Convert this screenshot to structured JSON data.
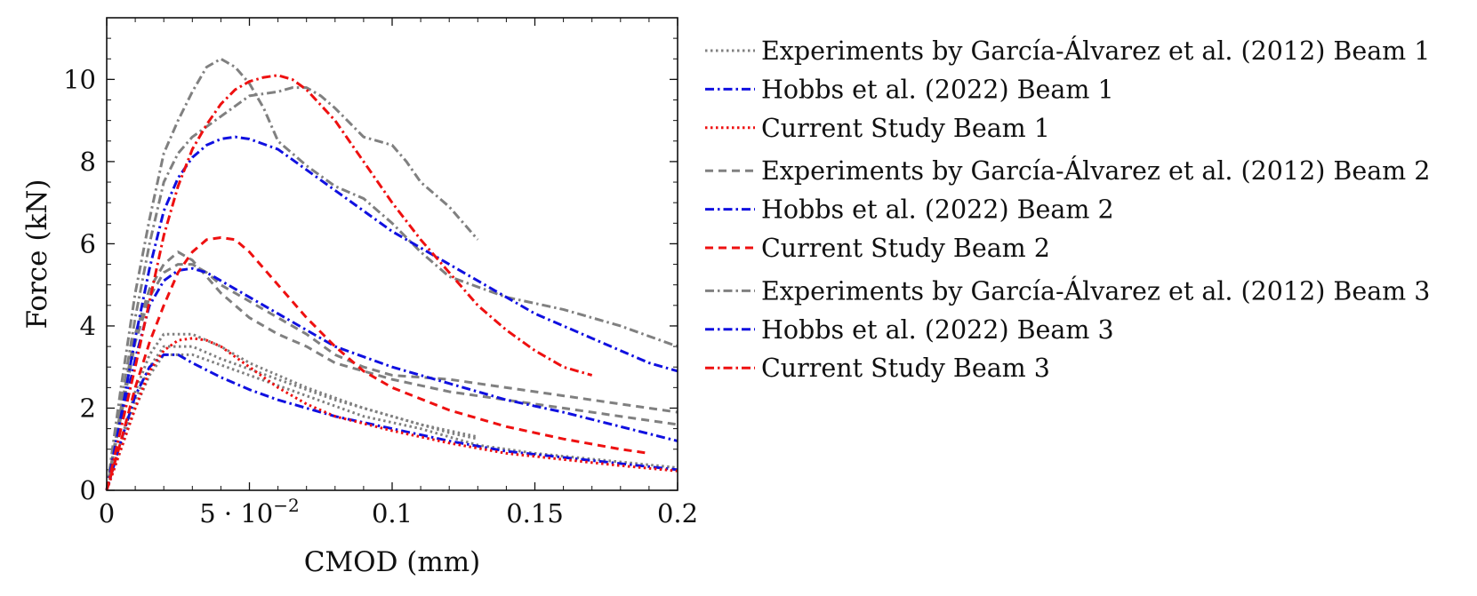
{
  "chart_data": {
    "type": "line",
    "title": "",
    "xlabel": "CMOD (mm)",
    "ylabel": "Force (kN)",
    "xlim": [
      0,
      0.2
    ],
    "ylim": [
      0,
      11.5
    ],
    "grid": false,
    "legend_position": "right-outside",
    "x_ticks": [
      {
        "value": 0,
        "label": "0"
      },
      {
        "value": 0.05,
        "label": "5 · 10",
        "sup": "−2"
      },
      {
        "value": 0.1,
        "label": "0.1"
      },
      {
        "value": 0.15,
        "label": "0.15"
      },
      {
        "value": 0.2,
        "label": "0.2"
      }
    ],
    "y_ticks": [
      {
        "value": 0,
        "label": "0"
      },
      {
        "value": 2,
        "label": "2"
      },
      {
        "value": 4,
        "label": "4"
      },
      {
        "value": 6,
        "label": "6"
      },
      {
        "value": 8,
        "label": "8"
      },
      {
        "value": 10,
        "label": "10"
      }
    ],
    "series": [
      {
        "name": "Experiments by García-Álvarez et al. (2012) Beam 1",
        "color": "#808080",
        "dash": "dotted",
        "curves": [
          [
            [
              0,
              0
            ],
            [
              0.005,
              1.2
            ],
            [
              0.01,
              2.4
            ],
            [
              0.015,
              3.3
            ],
            [
              0.02,
              3.8
            ],
            [
              0.03,
              3.8
            ],
            [
              0.04,
              3.5
            ],
            [
              0.05,
              3.1
            ],
            [
              0.07,
              2.5
            ],
            [
              0.09,
              2.0
            ],
            [
              0.11,
              1.6
            ],
            [
              0.13,
              1.3
            ]
          ],
          [
            [
              0,
              0
            ],
            [
              0.005,
              1.1
            ],
            [
              0.01,
              2.2
            ],
            [
              0.015,
              3.0
            ],
            [
              0.02,
              3.5
            ],
            [
              0.03,
              3.5
            ],
            [
              0.04,
              3.2
            ],
            [
              0.06,
              2.7
            ],
            [
              0.08,
              2.2
            ],
            [
              0.1,
              1.8
            ],
            [
              0.12,
              1.4
            ],
            [
              0.13,
              1.25
            ]
          ],
          [
            [
              0,
              0
            ],
            [
              0.005,
              1.0
            ],
            [
              0.01,
              2.0
            ],
            [
              0.015,
              2.8
            ],
            [
              0.02,
              3.3
            ],
            [
              0.03,
              3.3
            ],
            [
              0.05,
              2.8
            ],
            [
              0.07,
              2.3
            ],
            [
              0.09,
              1.8
            ],
            [
              0.11,
              1.5
            ],
            [
              0.13,
              1.1
            ],
            [
              0.15,
              0.9
            ],
            [
              0.2,
              0.55
            ]
          ]
        ]
      },
      {
        "name": "Hobbs et al. (2022) Beam 1",
        "color": "#1010e0",
        "dash": "dashdot",
        "curves": [
          [
            [
              0,
              0
            ],
            [
              0.005,
              1.2
            ],
            [
              0.01,
              2.3
            ],
            [
              0.015,
              3.0
            ],
            [
              0.02,
              3.3
            ],
            [
              0.025,
              3.3
            ],
            [
              0.03,
              3.1
            ],
            [
              0.04,
              2.75
            ],
            [
              0.05,
              2.45
            ],
            [
              0.06,
              2.2
            ],
            [
              0.08,
              1.8
            ],
            [
              0.1,
              1.5
            ],
            [
              0.12,
              1.2
            ],
            [
              0.14,
              0.95
            ],
            [
              0.16,
              0.8
            ],
            [
              0.18,
              0.65
            ],
            [
              0.2,
              0.5
            ]
          ]
        ]
      },
      {
        "name": "Current Study Beam 1",
        "color": "#ee1010",
        "dash": "dotted",
        "curves": [
          [
            [
              0,
              0
            ],
            [
              0.005,
              1.0
            ],
            [
              0.01,
              2.0
            ],
            [
              0.015,
              2.9
            ],
            [
              0.02,
              3.4
            ],
            [
              0.025,
              3.65
            ],
            [
              0.03,
              3.7
            ],
            [
              0.035,
              3.65
            ],
            [
              0.04,
              3.5
            ],
            [
              0.05,
              3.0
            ],
            [
              0.06,
              2.5
            ],
            [
              0.07,
              2.1
            ],
            [
              0.08,
              1.8
            ],
            [
              0.1,
              1.45
            ],
            [
              0.12,
              1.15
            ],
            [
              0.14,
              0.9
            ],
            [
              0.16,
              0.75
            ],
            [
              0.18,
              0.6
            ],
            [
              0.2,
              0.47
            ]
          ]
        ]
      },
      {
        "name": "Experiments by García-Álvarez et al. (2012) Beam 2",
        "color": "#808080",
        "dash": "dashed",
        "curves": [
          [
            [
              0,
              0
            ],
            [
              0.005,
              2.0
            ],
            [
              0.01,
              3.8
            ],
            [
              0.015,
              4.9
            ],
            [
              0.02,
              5.5
            ],
            [
              0.025,
              5.8
            ],
            [
              0.03,
              5.6
            ],
            [
              0.035,
              5.2
            ],
            [
              0.04,
              4.8
            ],
            [
              0.05,
              4.2
            ],
            [
              0.06,
              3.8
            ],
            [
              0.07,
              3.5
            ],
            [
              0.08,
              3.1
            ],
            [
              0.1,
              2.7
            ],
            [
              0.12,
              2.4
            ],
            [
              0.14,
              2.2
            ],
            [
              0.16,
              2.0
            ],
            [
              0.18,
              1.8
            ],
            [
              0.2,
              1.6
            ]
          ],
          [
            [
              0,
              0
            ],
            [
              0.005,
              1.8
            ],
            [
              0.01,
              3.6
            ],
            [
              0.015,
              4.7
            ],
            [
              0.02,
              5.3
            ],
            [
              0.025,
              5.5
            ],
            [
              0.03,
              5.5
            ],
            [
              0.035,
              5.3
            ],
            [
              0.04,
              5.0
            ],
            [
              0.05,
              4.6
            ],
            [
              0.06,
              4.2
            ],
            [
              0.07,
              3.8
            ],
            [
              0.08,
              3.3
            ],
            [
              0.09,
              3.0
            ],
            [
              0.1,
              2.8
            ],
            [
              0.12,
              2.7
            ],
            [
              0.14,
              2.5
            ],
            [
              0.16,
              2.3
            ],
            [
              0.18,
              2.1
            ],
            [
              0.2,
              1.9
            ]
          ]
        ]
      },
      {
        "name": "Hobbs et al. (2022) Beam 2",
        "color": "#1010e0",
        "dash": "dashdot",
        "curves": [
          [
            [
              0,
              0
            ],
            [
              0.005,
              1.6
            ],
            [
              0.01,
              3.2
            ],
            [
              0.015,
              4.5
            ],
            [
              0.02,
              5.1
            ],
            [
              0.025,
              5.35
            ],
            [
              0.03,
              5.4
            ],
            [
              0.035,
              5.3
            ],
            [
              0.04,
              5.1
            ],
            [
              0.05,
              4.7
            ],
            [
              0.06,
              4.3
            ],
            [
              0.07,
              3.9
            ],
            [
              0.08,
              3.5
            ],
            [
              0.1,
              3.0
            ],
            [
              0.12,
              2.6
            ],
            [
              0.14,
              2.2
            ],
            [
              0.16,
              1.9
            ],
            [
              0.18,
              1.55
            ],
            [
              0.2,
              1.2
            ]
          ]
        ]
      },
      {
        "name": "Current Study Beam 2",
        "color": "#ee1010",
        "dash": "dashed",
        "curves": [
          [
            [
              0,
              0
            ],
            [
              0.005,
              1.2
            ],
            [
              0.01,
              2.5
            ],
            [
              0.015,
              3.6
            ],
            [
              0.02,
              4.5
            ],
            [
              0.025,
              5.3
            ],
            [
              0.03,
              5.8
            ],
            [
              0.035,
              6.1
            ],
            [
              0.04,
              6.15
            ],
            [
              0.045,
              6.1
            ],
            [
              0.05,
              5.8
            ],
            [
              0.06,
              5.0
            ],
            [
              0.07,
              4.2
            ],
            [
              0.08,
              3.5
            ],
            [
              0.09,
              2.9
            ],
            [
              0.1,
              2.5
            ],
            [
              0.12,
              1.95
            ],
            [
              0.14,
              1.55
            ],
            [
              0.16,
              1.25
            ],
            [
              0.18,
              1.0
            ],
            [
              0.19,
              0.9
            ]
          ]
        ]
      },
      {
        "name": "Experiments by García-Álvarez et al. (2012) Beam 3",
        "color": "#808080",
        "dash": "dashdot",
        "curves": [
          [
            [
              0,
              0
            ],
            [
              0.005,
              2.5
            ],
            [
              0.01,
              4.8
            ],
            [
              0.015,
              6.6
            ],
            [
              0.02,
              8.2
            ],
            [
              0.025,
              9.0
            ],
            [
              0.03,
              9.7
            ],
            [
              0.035,
              10.3
            ],
            [
              0.04,
              10.5
            ],
            [
              0.045,
              10.3
            ],
            [
              0.05,
              9.9
            ],
            [
              0.055,
              9.3
            ],
            [
              0.06,
              8.5
            ],
            [
              0.07,
              7.9
            ],
            [
              0.08,
              7.4
            ],
            [
              0.09,
              7.1
            ],
            [
              0.1,
              6.5
            ],
            [
              0.11,
              5.8
            ],
            [
              0.12,
              5.2
            ],
            [
              0.14,
              4.7
            ],
            [
              0.16,
              4.4
            ],
            [
              0.18,
              4.0
            ],
            [
              0.2,
              3.5
            ]
          ],
          [
            [
              0,
              0
            ],
            [
              0.005,
              2.1
            ],
            [
              0.01,
              4.2
            ],
            [
              0.015,
              6.0
            ],
            [
              0.02,
              7.5
            ],
            [
              0.025,
              8.2
            ],
            [
              0.03,
              8.6
            ],
            [
              0.04,
              9.1
            ],
            [
              0.05,
              9.6
            ],
            [
              0.06,
              9.7
            ],
            [
              0.065,
              9.8
            ],
            [
              0.07,
              9.8
            ],
            [
              0.075,
              9.6
            ],
            [
              0.08,
              9.3
            ],
            [
              0.09,
              8.6
            ],
            [
              0.1,
              8.4
            ],
            [
              0.105,
              8.0
            ],
            [
              0.11,
              7.5
            ],
            [
              0.12,
              6.9
            ],
            [
              0.125,
              6.5
            ],
            [
              0.13,
              6.1
            ]
          ]
        ]
      },
      {
        "name": "Hobbs et al. (2022) Beam 3",
        "color": "#1010e0",
        "dash": "dashdot",
        "curves": [
          [
            [
              0,
              0
            ],
            [
              0.005,
              1.8
            ],
            [
              0.01,
              3.7
            ],
            [
              0.015,
              5.4
            ],
            [
              0.02,
              6.8
            ],
            [
              0.025,
              7.6
            ],
            [
              0.03,
              8.1
            ],
            [
              0.035,
              8.4
            ],
            [
              0.04,
              8.55
            ],
            [
              0.045,
              8.6
            ],
            [
              0.05,
              8.55
            ],
            [
              0.06,
              8.3
            ],
            [
              0.07,
              7.8
            ],
            [
              0.08,
              7.3
            ],
            [
              0.09,
              6.8
            ],
            [
              0.1,
              6.3
            ],
            [
              0.11,
              5.9
            ],
            [
              0.12,
              5.5
            ],
            [
              0.13,
              5.1
            ],
            [
              0.14,
              4.7
            ],
            [
              0.15,
              4.3
            ],
            [
              0.16,
              4.0
            ],
            [
              0.17,
              3.7
            ],
            [
              0.18,
              3.4
            ],
            [
              0.19,
              3.1
            ],
            [
              0.2,
              2.9
            ]
          ]
        ]
      },
      {
        "name": "Current Study Beam 3",
        "color": "#ee1010",
        "dash": "dashdot",
        "curves": [
          [
            [
              0,
              0
            ],
            [
              0.005,
              1.5
            ],
            [
              0.01,
              3.0
            ],
            [
              0.015,
              4.6
            ],
            [
              0.02,
              6.2
            ],
            [
              0.025,
              7.4
            ],
            [
              0.03,
              8.3
            ],
            [
              0.035,
              8.9
            ],
            [
              0.04,
              9.4
            ],
            [
              0.045,
              9.75
            ],
            [
              0.05,
              9.95
            ],
            [
              0.055,
              10.05
            ],
            [
              0.06,
              10.1
            ],
            [
              0.065,
              10.0
            ],
            [
              0.07,
              9.75
            ],
            [
              0.08,
              9.0
            ],
            [
              0.09,
              8.0
            ],
            [
              0.1,
              7.0
            ],
            [
              0.11,
              6.1
            ],
            [
              0.12,
              5.3
            ],
            [
              0.13,
              4.5
            ],
            [
              0.14,
              3.9
            ],
            [
              0.15,
              3.4
            ],
            [
              0.16,
              3.0
            ],
            [
              0.17,
              2.8
            ]
          ]
        ]
      }
    ]
  }
}
